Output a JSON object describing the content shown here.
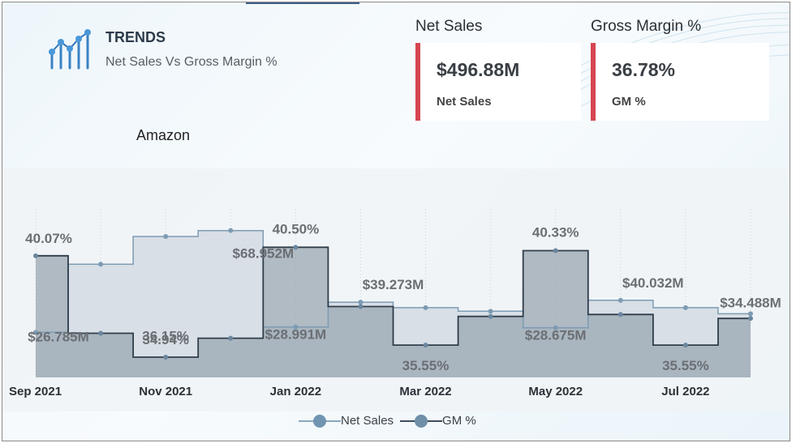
{
  "header": {
    "title": "TRENDS",
    "subtitle": "Net Sales Vs Gross Margin %",
    "company": "Amazon"
  },
  "kpis": [
    {
      "title": "Net Sales",
      "value": "$496.88M",
      "label": "Net Sales",
      "accent": "#d64550"
    },
    {
      "title": "Gross Margin %",
      "value": "36.78%",
      "label": "GM %",
      "accent": "#d64550"
    }
  ],
  "legend": {
    "net_sales": "Net Sales",
    "gm": "GM %"
  },
  "colors": {
    "net_sales_fill": "#d5dde3",
    "net_sales_line": "#7d9bb3",
    "gm_fill": "#9aa7b1",
    "gm_line": "#2f3d4a",
    "label": "#6b6f74"
  },
  "chart_data": {
    "type": "area",
    "step": true,
    "x": [
      "Sep 2021",
      "Oct 2021",
      "Nov 2021",
      "Dec 2021",
      "Jan 2022",
      "Feb 2022",
      "Mar 2022",
      "Apr 2022",
      "May 2022",
      "Jun 2022",
      "Jul 2022",
      "Aug 2022"
    ],
    "x_tick_labels": [
      "Sep 2021",
      "Nov 2021",
      "Jan 2022",
      "Mar 2022",
      "May 2022",
      "Jul 2022"
    ],
    "series": [
      {
        "name": "Net Sales",
        "unit": "$M",
        "values": [
          26.785,
          55.0,
          66.5,
          68.952,
          28.991,
          39.273,
          37.0,
          35.5,
          28.675,
          40.032,
          37.0,
          34.488
        ]
      },
      {
        "name": "GM %",
        "unit": "%",
        "values": [
          40.07,
          36.15,
          34.94,
          35.9,
          40.5,
          37.5,
          35.55,
          37.0,
          40.33,
          37.1,
          35.55,
          36.9
        ]
      }
    ],
    "data_labels": [
      {
        "series": "GM %",
        "index": 0,
        "text": "40.07%"
      },
      {
        "series": "GM %",
        "index": 1,
        "text": "36.15%"
      },
      {
        "series": "GM %",
        "index": 2,
        "text": "34.94%"
      },
      {
        "series": "GM %",
        "index": 4,
        "text": "40.50%"
      },
      {
        "series": "GM %",
        "index": 6,
        "text": "35.55%"
      },
      {
        "series": "GM %",
        "index": 8,
        "text": "40.33%"
      },
      {
        "series": "GM %",
        "index": 10,
        "text": "35.55%"
      },
      {
        "series": "Net Sales",
        "index": 0,
        "text": "$26.785M"
      },
      {
        "series": "Net Sales",
        "index": 3,
        "text": "$68.952M"
      },
      {
        "series": "Net Sales",
        "index": 4,
        "text": "$28.991M"
      },
      {
        "series": "Net Sales",
        "index": 5,
        "text": "$39.273M"
      },
      {
        "series": "Net Sales",
        "index": 8,
        "text": "$28.675M"
      },
      {
        "series": "Net Sales",
        "index": 9,
        "text": "$40.032M"
      },
      {
        "series": "Net Sales",
        "index": 11,
        "text": "$34.488M"
      }
    ],
    "legend_position": "bottom",
    "grid": false
  }
}
